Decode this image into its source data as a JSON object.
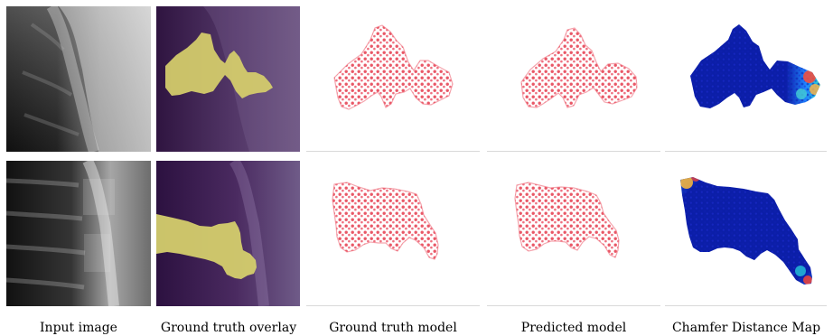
{
  "figure": {
    "captions": {
      "input_image": "Input image",
      "ground_truth_overlay": "Ground truth overlay",
      "ground_truth_model": "Ground truth model",
      "predicted_model": "Predicted model",
      "chamfer_distance_map": "Chamfer Distance Map"
    },
    "rows": [
      {
        "name": "row-1",
        "overlay_color": "#e5dc72",
        "point_color": "#ec5c6a",
        "error_hotspot": "right"
      },
      {
        "name": "row-2",
        "overlay_color": "#e5dc72",
        "point_color": "#ec5c6a",
        "error_hotspot": "left-top-right-bottom"
      }
    ],
    "colors": {
      "input_dark": "#111111",
      "input_light": "#d7d7d7",
      "overlay_bg": "#3a1d4f",
      "chamfer_low": "#0b1ea8",
      "chamfer_mid": "#26c6da",
      "chamfer_high": "#f44336"
    }
  }
}
